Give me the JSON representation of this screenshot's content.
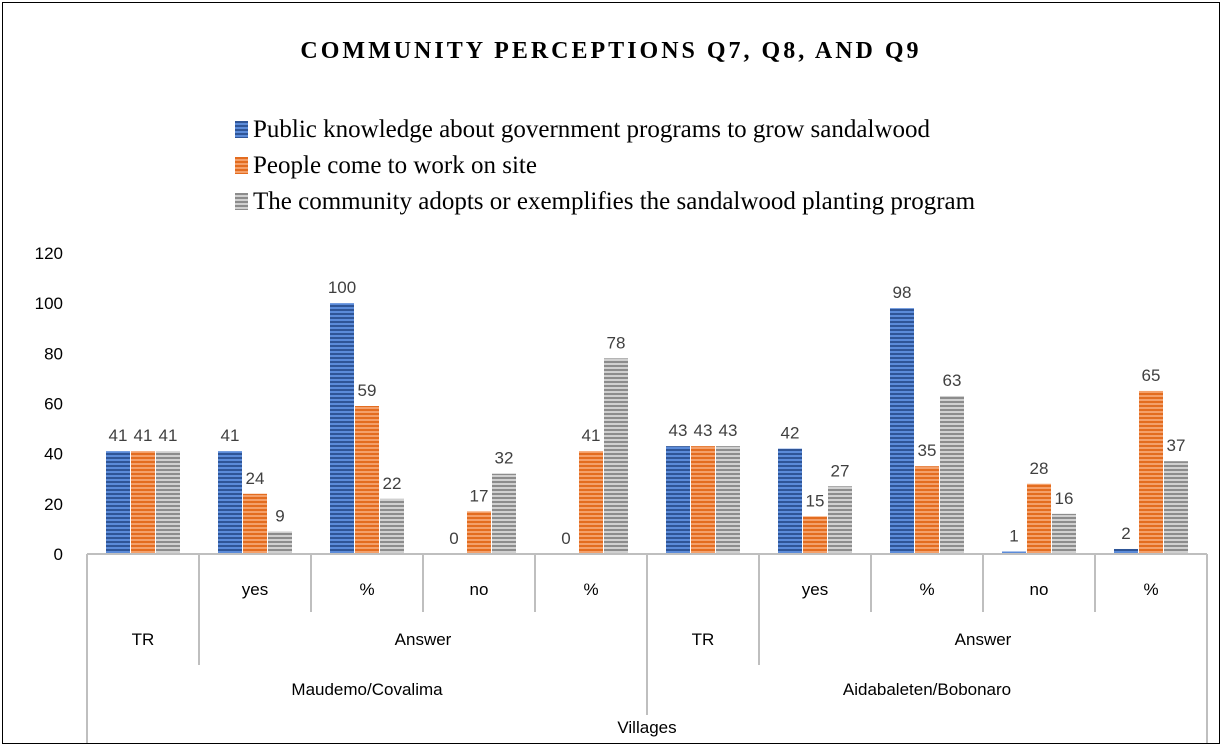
{
  "chart_data": {
    "type": "bar",
    "title": "COMMUNITY PERCEPTIONS Q7, Q8, AND Q9",
    "xlabel": "",
    "ylabel": "",
    "ylim": [
      0,
      120
    ],
    "yticks": [
      0,
      20,
      40,
      60,
      80,
      100,
      120
    ],
    "grid": false,
    "legend_position": "top",
    "category_levels": {
      "level1": [
        "",
        "yes",
        "%",
        "no",
        "%",
        "",
        "yes",
        "%",
        "no",
        "%"
      ],
      "level2": [
        {
          "label": "TR",
          "span": [
            0,
            0
          ]
        },
        {
          "label": "Answer",
          "span": [
            1,
            4
          ]
        },
        {
          "label": "TR",
          "span": [
            5,
            5
          ]
        },
        {
          "label": "Answer",
          "span": [
            6,
            9
          ]
        }
      ],
      "level3": [
        {
          "label": "Maudemo/Covalima",
          "span": [
            0,
            4
          ]
        },
        {
          "label": "Aidabaleten/Bobonaro",
          "span": [
            5,
            9
          ]
        }
      ],
      "level4": [
        {
          "label": "Villages",
          "span": [
            0,
            9
          ]
        }
      ]
    },
    "series": [
      {
        "name": "Public knowledge about government programs to grow sandalwood",
        "color": "#4472C4",
        "values": [
          41,
          41,
          100,
          0,
          0,
          43,
          42,
          98,
          1,
          2
        ]
      },
      {
        "name": "People come to work on site",
        "color": "#ED7D31",
        "values": [
          41,
          24,
          59,
          17,
          41,
          43,
          15,
          35,
          28,
          65
        ]
      },
      {
        "name": "The community adopts or exemplifies the sandalwood planting program",
        "color": "#A5A5A5",
        "values": [
          41,
          9,
          22,
          32,
          78,
          43,
          27,
          63,
          16,
          37
        ]
      }
    ]
  }
}
